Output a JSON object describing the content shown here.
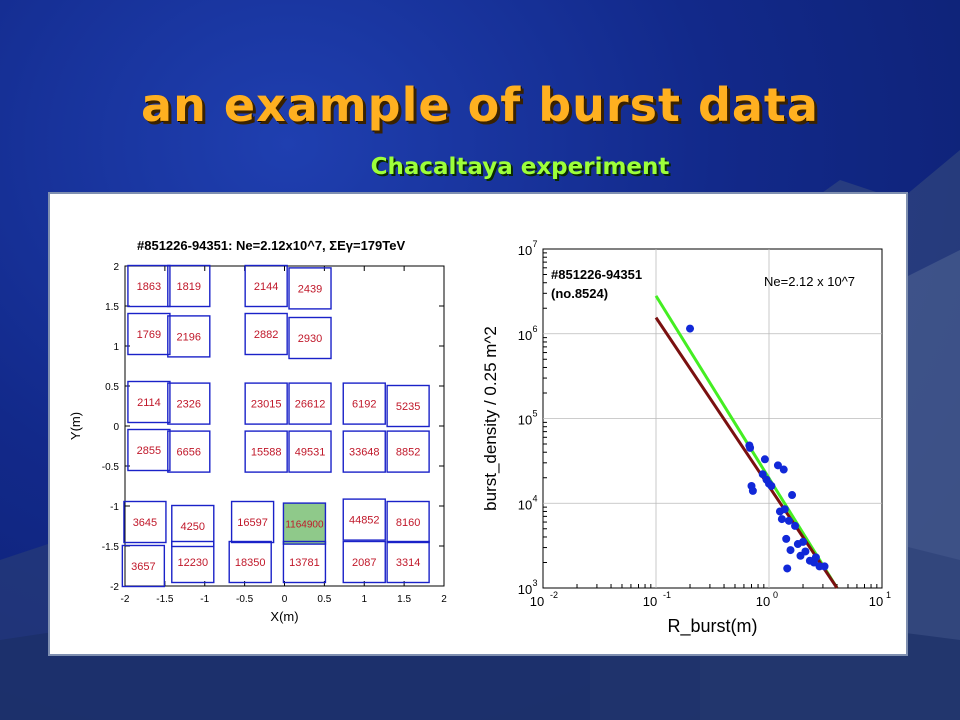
{
  "slide": {
    "title": "an example of burst data",
    "subtitle": "Chacaltaya experiment"
  },
  "chart_data": [
    {
      "type": "heatmap",
      "title": "#851226-94351: Ne=2.12x10^7, ΣEγ=179TeV",
      "xlabel": "X(m)",
      "ylabel": "Y(m)",
      "xlim": [
        -2,
        2
      ],
      "ylim": [
        -2,
        2
      ],
      "xticks": [
        "-2",
        "-1.5",
        "-1",
        "-0.5",
        "0",
        "0.5",
        "1",
        "1.5",
        "2"
      ],
      "yticks": [
        "-2",
        "-1.5",
        "-1",
        "-0.5",
        "0",
        "0.5",
        "1",
        "1.5",
        "2"
      ],
      "highlight_color": "#8fc98a",
      "cells": [
        {
          "x": -1.7,
          "y": 1.75,
          "value": "1863"
        },
        {
          "x": -1.2,
          "y": 1.75,
          "value": "1819"
        },
        {
          "x": -0.23,
          "y": 1.75,
          "value": "2144"
        },
        {
          "x": 0.32,
          "y": 1.72,
          "value": "2439"
        },
        {
          "x": -1.7,
          "y": 1.15,
          "value": "1769"
        },
        {
          "x": -1.2,
          "y": 1.12,
          "value": "2196"
        },
        {
          "x": -0.23,
          "y": 1.15,
          "value": "2882"
        },
        {
          "x": 0.32,
          "y": 1.1,
          "value": "2930"
        },
        {
          "x": -1.7,
          "y": 0.3,
          "value": "2114"
        },
        {
          "x": -1.2,
          "y": 0.28,
          "value": "2326"
        },
        {
          "x": -0.23,
          "y": 0.28,
          "value": "23015"
        },
        {
          "x": 0.32,
          "y": 0.28,
          "value": "26612"
        },
        {
          "x": 1.0,
          "y": 0.28,
          "value": "6192"
        },
        {
          "x": 1.55,
          "y": 0.25,
          "value": "5235"
        },
        {
          "x": -1.7,
          "y": -0.3,
          "value": "2855"
        },
        {
          "x": -1.2,
          "y": -0.32,
          "value": "6656"
        },
        {
          "x": -0.23,
          "y": -0.32,
          "value": "15588"
        },
        {
          "x": 0.32,
          "y": -0.32,
          "value": "49531"
        },
        {
          "x": 1.0,
          "y": -0.32,
          "value": "33648"
        },
        {
          "x": 1.55,
          "y": -0.32,
          "value": "8852"
        },
        {
          "x": -1.75,
          "y": -1.2,
          "value": "3645"
        },
        {
          "x": -1.15,
          "y": -1.25,
          "value": "4250"
        },
        {
          "x": -0.4,
          "y": -1.2,
          "value": "16597"
        },
        {
          "x": 0.25,
          "y": -1.22,
          "value": "1164900",
          "highlight": true
        },
        {
          "x": 1.0,
          "y": -1.17,
          "value": "44852"
        },
        {
          "x": 1.55,
          "y": -1.2,
          "value": "8160"
        },
        {
          "x": -1.77,
          "y": -1.75,
          "value": "3657"
        },
        {
          "x": -1.15,
          "y": -1.7,
          "value": "12230"
        },
        {
          "x": -0.43,
          "y": -1.7,
          "value": "18350"
        },
        {
          "x": 0.25,
          "y": -1.7,
          "value": "13781"
        },
        {
          "x": 1.0,
          "y": -1.7,
          "value": "2087"
        },
        {
          "x": 1.55,
          "y": -1.7,
          "value": "3314"
        }
      ]
    },
    {
      "type": "scatter",
      "title": "#851226-94351",
      "subtitle": "(no.8524)",
      "annotation": "Ne=2.12 x 10^7",
      "xlabel": "R_burst(m)",
      "ylabel": "burst_density / 0.25 m^2",
      "xscale": "log",
      "yscale": "log",
      "xlim": [
        0.01,
        10
      ],
      "ylim": [
        1000,
        10000000
      ],
      "grid": true,
      "xtick_bases": [
        "10",
        "10",
        "10",
        "10"
      ],
      "xtick_exps": [
        "-2",
        "-1",
        "0",
        "1"
      ],
      "ytick_bases": [
        "10",
        "10",
        "10",
        "10",
        "10"
      ],
      "ytick_exps": [
        "3",
        "4",
        "5",
        "6",
        "7"
      ],
      "points": [
        {
          "x": 0.2,
          "y": 1150000
        },
        {
          "x": 0.67,
          "y": 48000
        },
        {
          "x": 0.68,
          "y": 45000
        },
        {
          "x": 0.7,
          "y": 16000
        },
        {
          "x": 0.72,
          "y": 14000
        },
        {
          "x": 0.88,
          "y": 22000
        },
        {
          "x": 0.92,
          "y": 33000
        },
        {
          "x": 0.95,
          "y": 19000
        },
        {
          "x": 1.0,
          "y": 17000
        },
        {
          "x": 1.05,
          "y": 16000
        },
        {
          "x": 1.2,
          "y": 28000
        },
        {
          "x": 1.25,
          "y": 8000
        },
        {
          "x": 1.3,
          "y": 6500
        },
        {
          "x": 1.35,
          "y": 25000
        },
        {
          "x": 1.38,
          "y": 8500
        },
        {
          "x": 1.42,
          "y": 3800
        },
        {
          "x": 1.45,
          "y": 1700
        },
        {
          "x": 1.5,
          "y": 6200
        },
        {
          "x": 1.55,
          "y": 2800
        },
        {
          "x": 1.6,
          "y": 12500
        },
        {
          "x": 1.7,
          "y": 5400
        },
        {
          "x": 1.8,
          "y": 3300
        },
        {
          "x": 1.9,
          "y": 2400
        },
        {
          "x": 2.0,
          "y": 3500
        },
        {
          "x": 2.1,
          "y": 2700
        },
        {
          "x": 2.3,
          "y": 2100
        },
        {
          "x": 2.5,
          "y": 2000
        },
        {
          "x": 2.6,
          "y": 2300
        },
        {
          "x": 2.8,
          "y": 1800
        },
        {
          "x": 3.1,
          "y": 1800
        }
      ],
      "series": [
        {
          "color": "#44ee22",
          "x": [
            0.1,
            4.0
          ],
          "y": [
            2800000,
            1000
          ]
        },
        {
          "color": "#7a1010",
          "x": [
            0.1,
            4.0
          ],
          "y": [
            1550000,
            1000
          ]
        }
      ],
      "point_color": "#1128d8"
    }
  ]
}
